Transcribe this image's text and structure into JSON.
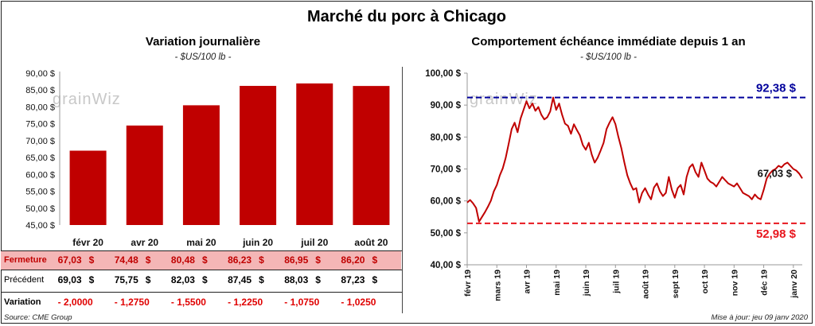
{
  "title": "Marché du porc à Chicago",
  "left": {
    "subtitle": "Variation journalière",
    "units": "- $US/100 lb -",
    "watermark": "grainWiz"
  },
  "right": {
    "subtitle": "Comportement échéance immédiate depuis 1 an",
    "units": "- $US/100 lb -",
    "watermark": "grainWiz",
    "max_label": "92,38 $",
    "min_label": "52,98 $",
    "last_label": "67,03 $"
  },
  "table": {
    "rows": [
      {
        "label": "Fermeture",
        "values": [
          "67,03",
          "74,48",
          "80,48",
          "86,23",
          "86,95",
          "86,20"
        ],
        "suffix": "$"
      },
      {
        "label": "Précédent",
        "values": [
          "69,03",
          "75,75",
          "82,03",
          "87,45",
          "88,03",
          "87,23"
        ],
        "suffix": "$"
      },
      {
        "label": "Variation",
        "values": [
          "- 2,0000",
          "- 1,2750",
          "- 1,5500",
          "- 1,2250",
          "- 1,0750",
          "- 1,0250"
        ],
        "suffix": ""
      }
    ]
  },
  "footer": {
    "source": "Source: CME Group",
    "update": "Mise à jour: jeu 09 janv 2020"
  },
  "colors": {
    "bar": "#c00000",
    "line": "#c00000",
    "max_line": "#00009c",
    "min_line": "#e8161e",
    "fermeture_bg": "#f4b6b6",
    "variation_text": "#e00000"
  },
  "chart_data": [
    {
      "type": "bar",
      "title": "Variation journalière",
      "ylabel": "$US/100 lb",
      "categories": [
        "févr 20",
        "avr 20",
        "mai 20",
        "juin 20",
        "juil 20",
        "août 20"
      ],
      "values": [
        67.03,
        74.48,
        80.48,
        86.23,
        86.95,
        86.2
      ],
      "ylim": [
        45,
        90
      ],
      "yticks": [
        "45,00 $",
        "50,00 $",
        "55,00 $",
        "60,00 $",
        "65,00 $",
        "70,00 $",
        "75,00 $",
        "80,00 $",
        "85,00 $",
        "90,00 $"
      ],
      "grid": false
    },
    {
      "type": "line",
      "title": "Comportement échéance immédiate depuis 1 an",
      "ylabel": "$US/100 lb",
      "ylim": [
        40,
        100
      ],
      "yticks": [
        "40,00 $",
        "50,00 $",
        "60,00 $",
        "70,00 $",
        "80,00 $",
        "90,00 $",
        "100,00 $"
      ],
      "xlabels": [
        "févr 19",
        "mars 19",
        "avr 19",
        "mai 19",
        "juin 19",
        "juil 19",
        "août 19",
        "sept 19",
        "oct 19",
        "nov 19",
        "déc 19",
        "janv 20"
      ],
      "x_range_months": [
        0,
        11.3
      ],
      "max_value": 92.38,
      "min_value": 52.98,
      "last_value": 67.03,
      "x_months": [
        0,
        0.1,
        0.2,
        0.3,
        0.4,
        0.5,
        0.6,
        0.7,
        0.8,
        0.9,
        1.0,
        1.1,
        1.2,
        1.3,
        1.4,
        1.5,
        1.6,
        1.7,
        1.8,
        1.9,
        2.0,
        2.1,
        2.2,
        2.3,
        2.4,
        2.5,
        2.6,
        2.7,
        2.8,
        2.9,
        3.0,
        3.1,
        3.2,
        3.3,
        3.4,
        3.5,
        3.6,
        3.7,
        3.8,
        3.9,
        4.0,
        4.1,
        4.2,
        4.3,
        4.4,
        4.5,
        4.6,
        4.7,
        4.8,
        4.9,
        5.0,
        5.1,
        5.2,
        5.3,
        5.4,
        5.5,
        5.6,
        5.7,
        5.8,
        5.9,
        6.0,
        6.1,
        6.2,
        6.3,
        6.4,
        6.5,
        6.6,
        6.7,
        6.8,
        6.9,
        7.0,
        7.1,
        7.2,
        7.3,
        7.4,
        7.5,
        7.6,
        7.7,
        7.8,
        7.9,
        8.0,
        8.1,
        8.2,
        8.3,
        8.4,
        8.5,
        8.6,
        8.7,
        8.8,
        8.9,
        9.0,
        9.1,
        9.2,
        9.3,
        9.4,
        9.5,
        9.6,
        9.7,
        9.8,
        9.9,
        10.0,
        10.1,
        10.2,
        10.3,
        10.4,
        10.5,
        10.6,
        10.7,
        10.8,
        10.9,
        11.0,
        11.1,
        11.2,
        11.3
      ],
      "values": [
        59.5,
        60.3,
        59.2,
        57.8,
        53.5,
        55.0,
        56.5,
        58.2,
        60.1,
        63.0,
        65.0,
        68.0,
        70.2,
        73.5,
        78.0,
        82.5,
        84.5,
        81.5,
        85.8,
        88.5,
        91.2,
        89.0,
        90.5,
        88.2,
        89.4,
        87.0,
        85.5,
        86.2,
        88.0,
        92.38,
        88.5,
        90.5,
        87.0,
        84.2,
        83.5,
        81.0,
        84.0,
        82.2,
        80.5,
        77.5,
        76.0,
        78.2,
        74.5,
        72.0,
        73.5,
        75.8,
        78.2,
        82.5,
        84.5,
        86.2,
        84.0,
        80.0,
        76.5,
        72.0,
        68.0,
        65.5,
        63.5,
        64.0,
        59.5,
        62.5,
        64.0,
        62.0,
        60.5,
        64.2,
        65.5,
        63.0,
        61.5,
        62.5,
        67.5,
        63.5,
        61.0,
        64.0,
        65.0,
        62.0,
        67.5,
        70.5,
        71.5,
        69.0,
        67.5,
        72.0,
        69.5,
        67.0,
        66.0,
        65.5,
        64.5,
        66.0,
        67.5,
        66.5,
        65.5,
        65.0,
        64.5,
        65.5,
        64.0,
        62.5,
        62.0,
        61.5,
        60.5,
        62.0,
        61.0,
        60.5,
        63.5,
        67.0,
        68.5,
        69.5,
        70.0,
        71.0,
        70.5,
        71.5,
        72.0,
        71.0,
        70.0,
        69.5,
        68.5,
        67.03
      ]
    }
  ]
}
